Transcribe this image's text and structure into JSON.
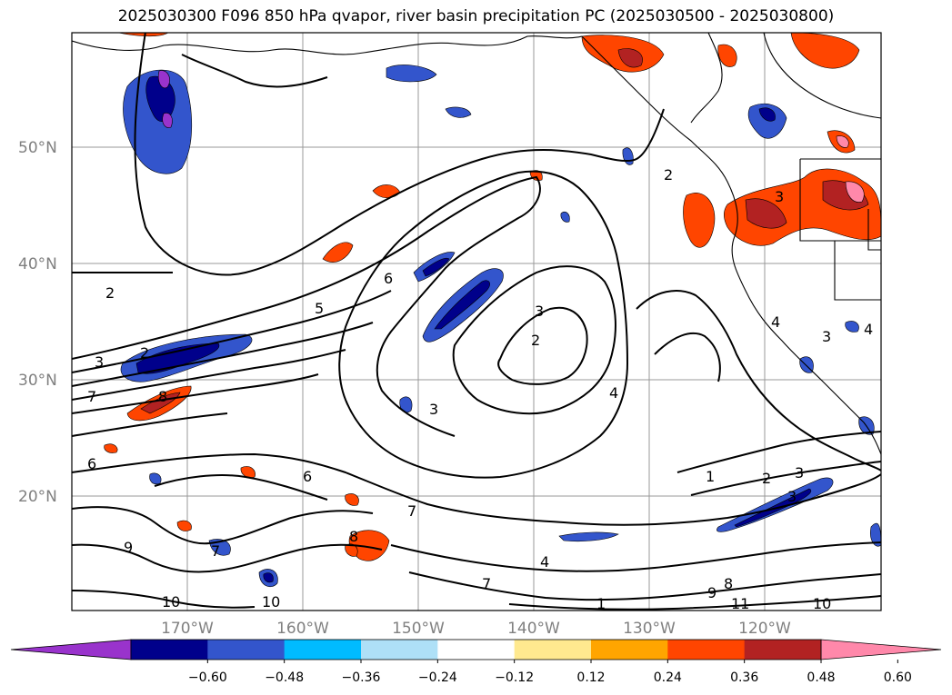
{
  "title": "2025030300 F096 850 hPa qvapor, river basin precipitation PC (2025030500 - 2025030800)",
  "map": {
    "lat_labels": [
      "50°N",
      "40°N",
      "30°N",
      "20°N"
    ],
    "lon_labels": [
      "170°W",
      "160°W",
      "150°W",
      "140°W",
      "130°W",
      "120°W"
    ],
    "contour_labels": [
      "2",
      "2",
      "3",
      "7",
      "8",
      "6",
      "6",
      "5",
      "3",
      "2",
      "4",
      "3",
      "6",
      "7",
      "8",
      "7",
      "9",
      "10",
      "10",
      "4",
      "7",
      "1",
      "2",
      "3",
      "3",
      "1",
      "8",
      "9",
      "11",
      "10",
      "4",
      "3",
      "4",
      "2",
      "3"
    ]
  },
  "colorbar": {
    "colors": [
      "#9933cc",
      "#00008b",
      "#3355cc",
      "#00bbff",
      "#aee0f7",
      "#ffffff",
      "#ffe98f",
      "#ffa500",
      "#ff4500",
      "#b22222",
      "#ff88aa"
    ],
    "tick_labels": [
      "−0.60",
      "−0.48",
      "−0.36",
      "−0.24",
      "−0.12",
      "0.12",
      "0.24",
      "0.36",
      "0.48",
      "0.60"
    ]
  }
}
